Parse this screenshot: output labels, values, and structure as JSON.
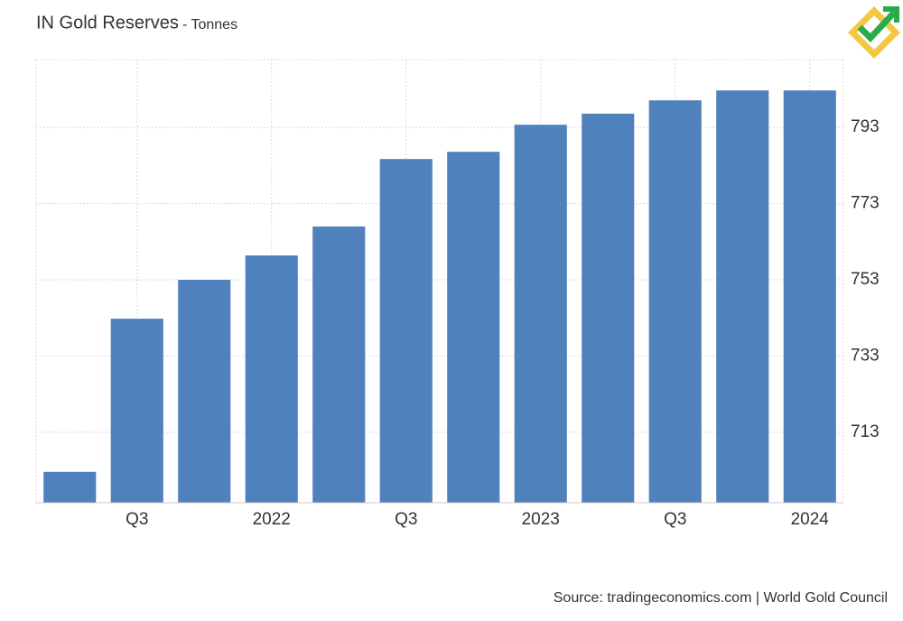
{
  "chart_data": {
    "type": "bar",
    "title": "IN Gold Reserves",
    "subtitle": "- Tonnes",
    "source": "Source: tradingeconomics.com | World Gold Council",
    "categories": [
      null,
      "Q3",
      null,
      "2022",
      null,
      "Q3",
      null,
      "2023",
      null,
      "Q3",
      null,
      "2024"
    ],
    "values": [
      702.6,
      742.8,
      753.0,
      759.4,
      767.0,
      784.7,
      786.6,
      793.7,
      796.6,
      800.1,
      802.7,
      802.7
    ],
    "color": "#4f81bd",
    "ylim": [
      694.5,
      810.8
    ],
    "yticks": [
      713,
      733,
      753,
      773,
      793
    ],
    "grid": true
  }
}
